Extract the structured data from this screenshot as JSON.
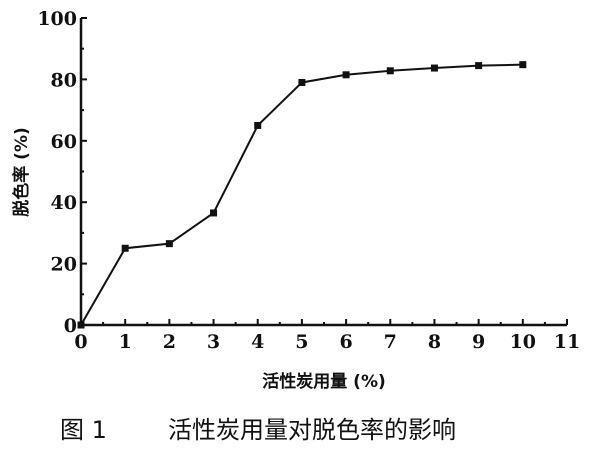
{
  "chart_data": {
    "type": "line",
    "xlabel": "活性炭用量 (%)",
    "ylabel": "脱色率 (%)",
    "caption_number": "图 1",
    "caption_text": "活性炭用量对脱色率的影响",
    "xlim": [
      0,
      11
    ],
    "ylim": [
      0,
      100
    ],
    "xticks": [
      0,
      1,
      2,
      3,
      4,
      5,
      6,
      7,
      8,
      9,
      10,
      11
    ],
    "yticks": [
      0,
      20,
      40,
      60,
      80,
      100
    ],
    "grid": false,
    "marker": "square",
    "line_color": "#111111",
    "x": [
      0,
      1,
      2,
      3,
      4,
      5,
      6,
      7,
      8,
      9,
      10
    ],
    "y": [
      0,
      25,
      26.5,
      36.5,
      65,
      79,
      81.5,
      82.8,
      83.7,
      84.5,
      84.8
    ]
  }
}
